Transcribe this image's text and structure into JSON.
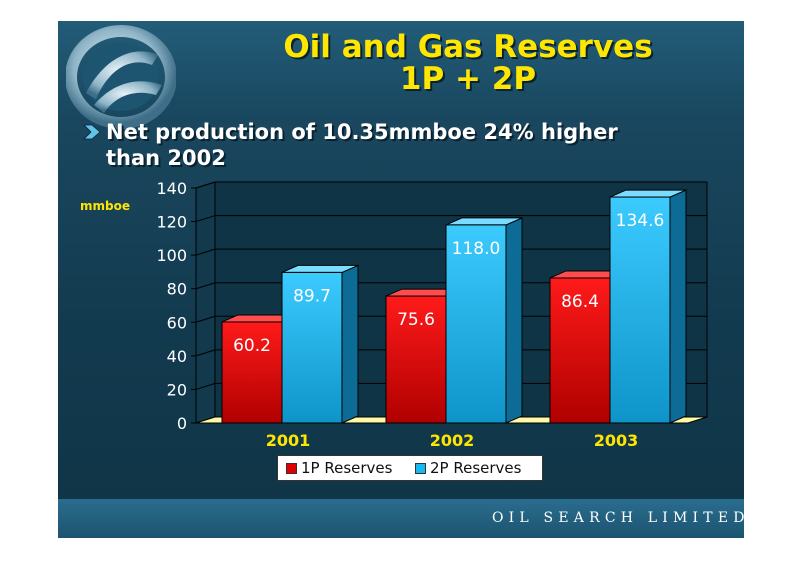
{
  "slide": {
    "title_line1": "Oil and Gas Reserves",
    "title_line2": "1P + 2P",
    "bullet_line1": "Net production of 10.35mmboe 24% higher",
    "bullet_line2": "than 2002",
    "footer": "OIL SEARCH LIMITED"
  },
  "colors": {
    "title": "#ffe600",
    "p1": "#e00000",
    "p2": "#19b8ee",
    "axis_text": "#ffffff",
    "category_text": "#ffe600"
  },
  "chart_data": {
    "type": "bar",
    "categories": [
      "2001",
      "2002",
      "2003"
    ],
    "series": [
      {
        "name": "1P Reserves",
        "values": [
          60.2,
          75.6,
          86.4
        ]
      },
      {
        "name": "2P Reserves",
        "values": [
          89.7,
          118.0,
          134.6
        ]
      }
    ],
    "value_labels": [
      [
        "60.2",
        "75.6",
        "86.4"
      ],
      [
        "89.7",
        "118.0",
        "134.6"
      ]
    ],
    "ylabel": "mmboe",
    "ylim": [
      0,
      140
    ],
    "yticks": [
      "0",
      "20",
      "40",
      "60",
      "80",
      "100",
      "120",
      "140"
    ],
    "grid": true,
    "legend": "bottom"
  }
}
